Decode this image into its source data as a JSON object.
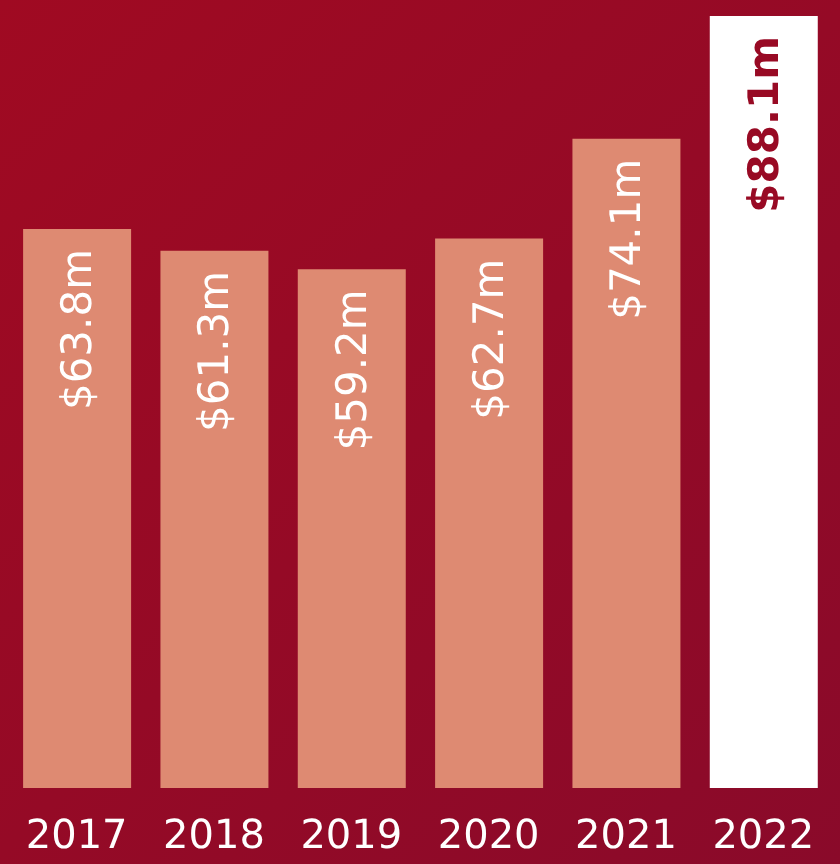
{
  "chart_data": {
    "type": "bar",
    "categories": [
      "2017",
      "2018",
      "2019",
      "2020",
      "2021",
      "2022"
    ],
    "values": [
      63.8,
      61.3,
      59.2,
      62.7,
      74.1,
      88.1
    ],
    "value_labels": [
      "$63.8m",
      "$61.3m",
      "$59.2m",
      "$62.7m",
      "$74.1m",
      "$88.1m"
    ],
    "colors": [
      "#de8a72",
      "#de8a72",
      "#de8a72",
      "#de8a72",
      "#de8a72",
      "#ffffff"
    ],
    "grid": false,
    "legend": false
  }
}
